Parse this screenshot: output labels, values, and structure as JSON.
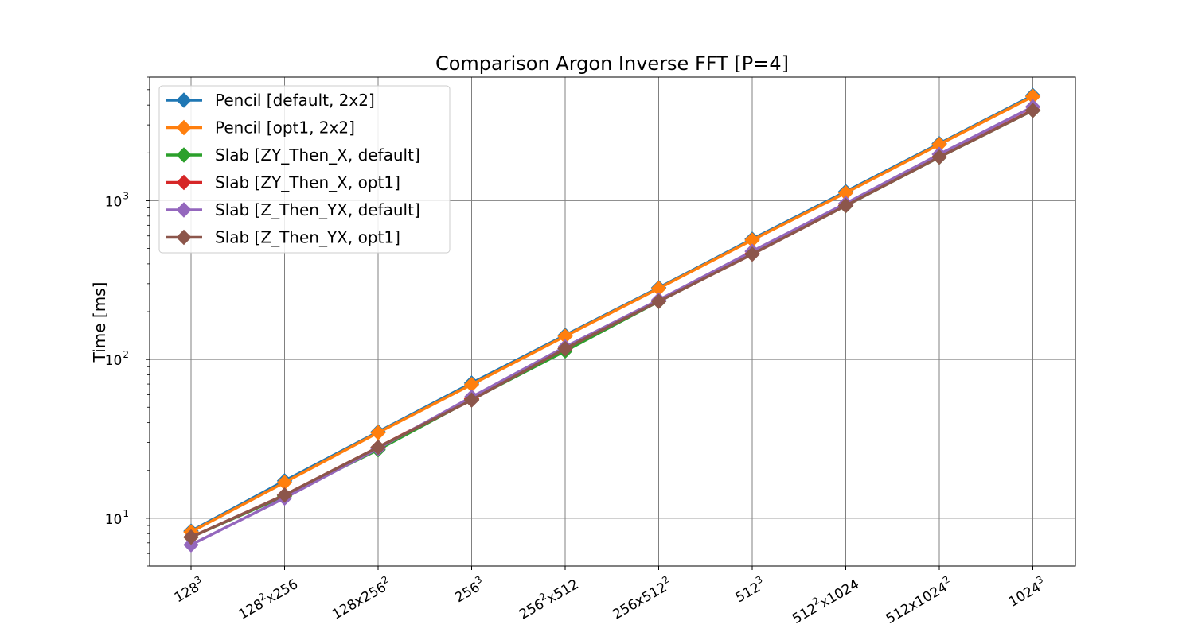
{
  "chart_data": {
    "type": "line",
    "title": "Comparison Argon Inverse FFT [P=4]",
    "xlabel": "",
    "ylabel": "Time [ms]",
    "yscale": "log",
    "ylim": [
      5,
      6000
    ],
    "grid": true,
    "legend_position": "top-left",
    "categories": [
      {
        "base": "128",
        "sup": "3",
        "tail": "",
        "tailsup": ""
      },
      {
        "base": "128",
        "sup": "2",
        "tail": "x256",
        "tailsup": ""
      },
      {
        "base": "128x256",
        "sup": "2",
        "tail": "",
        "tailsup": ""
      },
      {
        "base": "256",
        "sup": "3",
        "tail": "",
        "tailsup": ""
      },
      {
        "base": "256",
        "sup": "2",
        "tail": "x512",
        "tailsup": ""
      },
      {
        "base": "256x512",
        "sup": "2",
        "tail": "",
        "tailsup": ""
      },
      {
        "base": "512",
        "sup": "3",
        "tail": "",
        "tailsup": ""
      },
      {
        "base": "512",
        "sup": "2",
        "tail": "x1024",
        "tailsup": ""
      },
      {
        "base": "512x1024",
        "sup": "2",
        "tail": "",
        "tailsup": ""
      },
      {
        "base": "1024",
        "sup": "3",
        "tail": "",
        "tailsup": ""
      }
    ],
    "yticks": [
      {
        "value": 10,
        "base": "10",
        "sup": "1"
      },
      {
        "value": 100,
        "base": "10",
        "sup": "2"
      },
      {
        "value": 1000,
        "base": "10",
        "sup": "3"
      }
    ],
    "series": [
      {
        "name": "Pencil [default, 2x2]",
        "color": "#1f77b4",
        "values": [
          8.3,
          17.2,
          35.0,
          71.0,
          142.0,
          283.0,
          573.0,
          1140.0,
          2290.0,
          4600.0
        ]
      },
      {
        "name": "Pencil [opt1, 2x2]",
        "color": "#ff7f0e",
        "values": [
          8.2,
          16.8,
          34.6,
          69.5,
          140.0,
          280.0,
          565.0,
          1120.0,
          2260.0,
          4530.0
        ]
      },
      {
        "name": "Slab [ZY_Then_X, default]",
        "color": "#2ca02c",
        "values": [
          7.6,
          13.8,
          27.0,
          56.0,
          113.0,
          232.0,
          463.0,
          930.0,
          1880.0,
          3700.0
        ]
      },
      {
        "name": "Slab [ZY_Then_X, opt1]",
        "color": "#d62728",
        "values": [
          7.6,
          14.0,
          28.0,
          56.5,
          117.0,
          234.0,
          465.0,
          935.0,
          1890.0,
          3720.0
        ]
      },
      {
        "name": "Slab [Z_Then_YX, default]",
        "color": "#9467bd",
        "values": [
          6.8,
          13.4,
          27.5,
          58.0,
          120.0,
          237.0,
          480.0,
          960.0,
          1960.0,
          3900.0
        ]
      },
      {
        "name": "Slab [Z_Then_YX, opt1]",
        "color": "#8c564b",
        "values": [
          7.6,
          14.0,
          28.0,
          55.5,
          117.0,
          232.0,
          460.0,
          930.0,
          1880.0,
          3700.0
        ]
      }
    ]
  }
}
